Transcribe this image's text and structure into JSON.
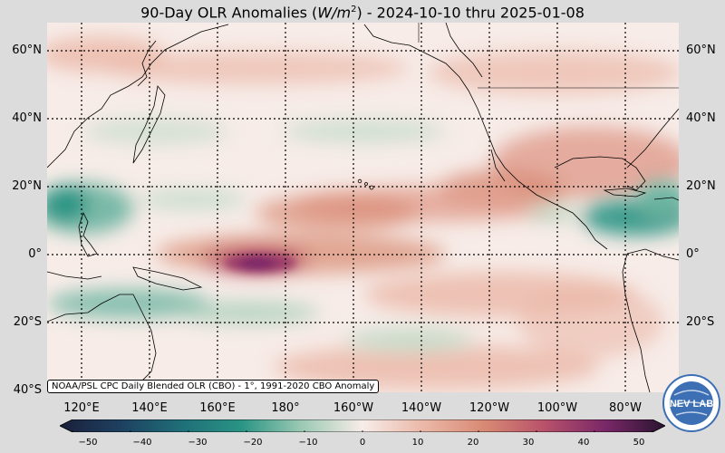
{
  "title": {
    "prefix": "90-Day OLR Anomalies (",
    "unit_base": "W/m",
    "unit_exp": "2",
    "suffix": ") - 2024-10-10 thru 2025-01-08"
  },
  "map": {
    "lat_labels": [
      "60°N",
      "40°N",
      "20°N",
      "0°",
      "20°S",
      "40°S"
    ],
    "lon_labels": [
      "120°E",
      "140°E",
      "160°E",
      "180°",
      "160°W",
      "140°W",
      "120°W",
      "100°W",
      "80°W"
    ],
    "credit": "NOAA/PSL CPC Daily Blended OLR (CBO) - 1°, 1991-2020 CBO Anomaly",
    "colors": {
      "ocean_neutral": "#f7ece8",
      "positive_light": "#ebb8a8",
      "positive_mid": "#d88a74",
      "positive_strong": "#b8526a",
      "positive_extreme": "#7a2868",
      "negative_light": "#bcd9c4",
      "negative_mid": "#6cb4a0",
      "negative_strong": "#2a9484"
    }
  },
  "colorbar": {
    "ticks": [
      "−50",
      "−40",
      "−30",
      "−20",
      "−10",
      "0",
      "10",
      "20",
      "30",
      "40",
      "50"
    ]
  },
  "logo": {
    "text": "NEV LAB",
    "bg_color": "#3d6fb5"
  }
}
